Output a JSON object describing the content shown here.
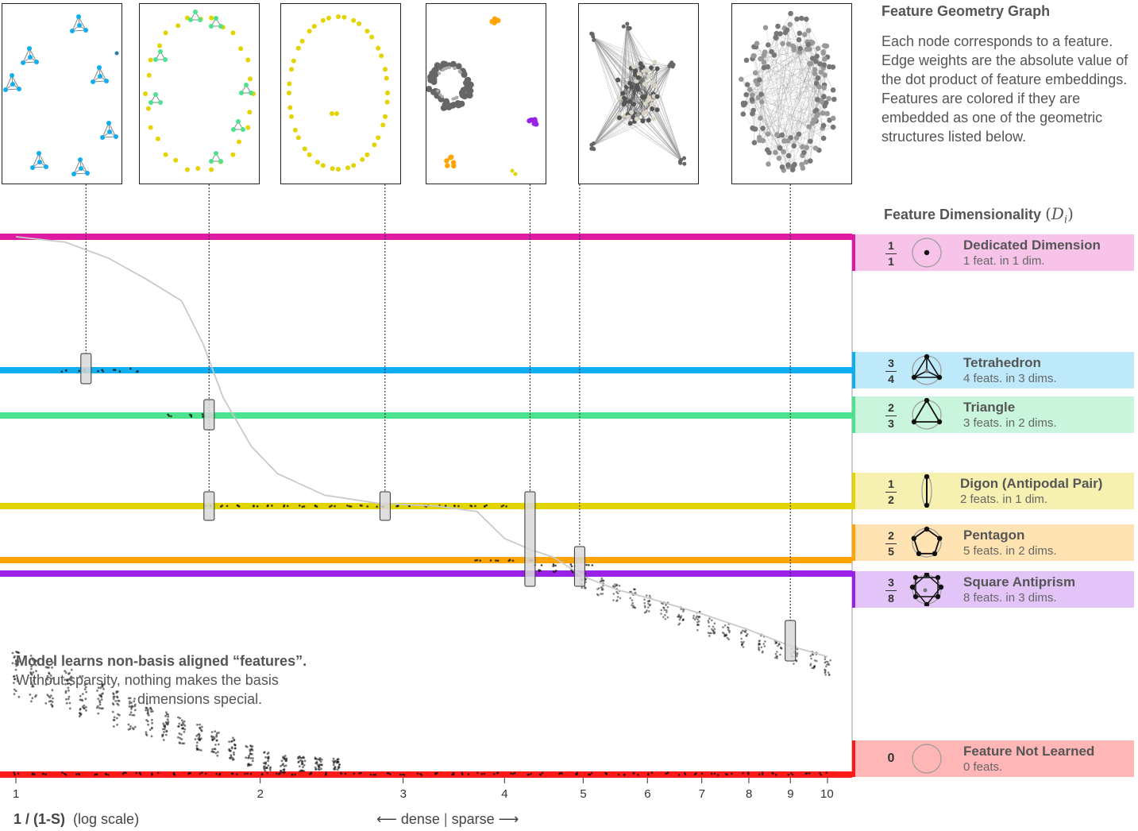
{
  "colors": {
    "dedicated": "#dd1aa1",
    "tetrahedron": "#10aef0",
    "triangle": "#4de38e",
    "digon": "#e3d400",
    "pentagon": "#ffa400",
    "antiprism": "#9a22e6",
    "notLearned": "#ff1a1a"
  },
  "side": {
    "title": "Feature Geometry Graph",
    "body": "Each node corresponds to a feature. Edge weights are the absolute value of the dot product of feature embeddings. Features are colored if they are embedded as one of the geometric structures listed below."
  },
  "legend": {
    "title": "Feature Dimensionality",
    "title_symbol_base": "D",
    "title_symbol_sub": "i",
    "items": [
      {
        "num": "1",
        "den": "1",
        "name": "Dedicated Dimension",
        "sub": "1 feat. in 1 dim.",
        "glyph": "dot-in-circle-icon"
      },
      {
        "num": "3",
        "den": "4",
        "name": "Tetrahedron",
        "sub": "4 feats. in 3 dims.",
        "glyph": "tetrahedron-icon"
      },
      {
        "num": "2",
        "den": "3",
        "name": "Triangle",
        "sub": "3 feats. in 2 dims.",
        "glyph": "triangle-icon"
      },
      {
        "num": "1",
        "den": "2",
        "name": "Digon (Antipodal Pair)",
        "sub": "2 feats. in 1 dim.",
        "glyph": "digon-icon"
      },
      {
        "num": "2",
        "den": "5",
        "name": "Pentagon",
        "sub": "5 feats. in 2 dims.",
        "glyph": "pentagon-icon"
      },
      {
        "num": "3",
        "den": "8",
        "name": "Square Antiprism",
        "sub": "8 feats. in 3 dims.",
        "glyph": "antiprism-icon"
      },
      {
        "num": "0",
        "den": "",
        "name": "Feature Not Learned",
        "sub": "0 feats.",
        "glyph": "empty-circle-icon"
      }
    ]
  },
  "annotation": {
    "line1": "Model learns non-basis aligned “features”.",
    "line2": "Without sparsity, nothing makes the basis",
    "line3": "dimensions special."
  },
  "xaxis": {
    "label_bold": "1 / (1-S)",
    "label_rest": "(log scale)",
    "dense": "dense",
    "sparse": "sparse"
  },
  "chart_data": {
    "type": "scatter",
    "title": "",
    "xlabel": "1 / (1-S) (log scale)",
    "ylabel": "",
    "x_scale": "log",
    "xlim": [
      1,
      10
    ],
    "ylim": [
      0,
      1
    ],
    "x_ticks": [
      1,
      2,
      3,
      4,
      5,
      6,
      7,
      8,
      9,
      10
    ],
    "reference_lines": [
      {
        "name": "Dedicated Dimension",
        "y": 1.0
      },
      {
        "name": "Tetrahedron",
        "y": 0.75
      },
      {
        "name": "Triangle",
        "y": 0.6667
      },
      {
        "name": "Digon (Antipodal Pair)",
        "y": 0.5
      },
      {
        "name": "Pentagon",
        "y": 0.4
      },
      {
        "name": "Square Antiprism",
        "y": 0.375
      },
      {
        "name": "Feature Not Learned",
        "y": 0.0
      }
    ],
    "trend_line": {
      "x": [
        1.0,
        1.15,
        1.3,
        1.45,
        1.6,
        1.7,
        1.8,
        1.95,
        2.1,
        2.4,
        2.8,
        3.3,
        3.7,
        4.0,
        4.3,
        4.6,
        5.0,
        5.5,
        6.0,
        7.0,
        8.0,
        9.0,
        10.0
      ],
      "y": [
        1.0,
        0.99,
        0.96,
        0.92,
        0.88,
        0.8,
        0.7,
        0.61,
        0.56,
        0.52,
        0.505,
        0.5,
        0.49,
        0.44,
        0.42,
        0.405,
        0.37,
        0.345,
        0.33,
        0.3,
        0.27,
        0.24,
        0.22
      ]
    },
    "point_clusters": [
      {
        "x": 1.22,
        "y": 0.75,
        "group": "tetrahedron"
      },
      {
        "x": 1.73,
        "y": 0.6667,
        "group": "triangle"
      },
      {
        "x": 1.73,
        "y": 0.5,
        "group": "digon"
      },
      {
        "x": 2.85,
        "y": 0.5,
        "group": "digon"
      },
      {
        "x": 4.3,
        "y": 0.44,
        "group": "mixed"
      },
      {
        "x": 4.95,
        "y": 0.39,
        "group": "pentagon"
      },
      {
        "x": 9.0,
        "y": 0.22,
        "group": "dense-core"
      }
    ],
    "highlighted_x": [
      1.22,
      1.73,
      2.85,
      4.3,
      4.95,
      9.0
    ]
  }
}
